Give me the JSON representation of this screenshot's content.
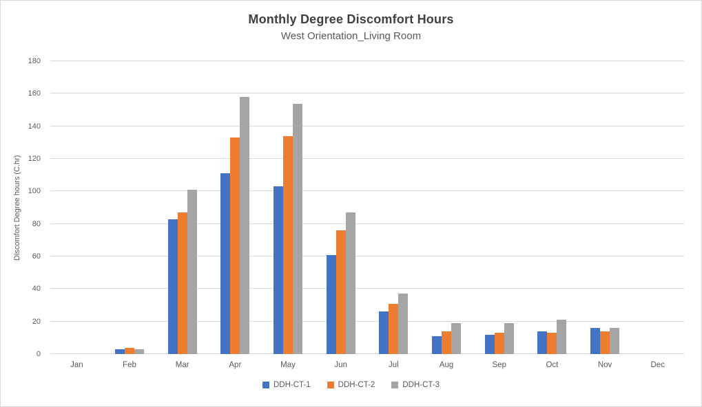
{
  "frame": {
    "background": "#FFFFFF",
    "border_color": "#D8D8D8"
  },
  "chart_data": {
    "type": "bar",
    "title": "Monthly Degree Discomfort Hours",
    "subtitle": "West Orientation_Living Room",
    "ylabel": "Discomfort Degree hours (C.hr)",
    "xlabel": "",
    "ylim": [
      0,
      180
    ],
    "y_ticks": [
      0,
      20,
      40,
      60,
      80,
      100,
      120,
      140,
      160,
      180
    ],
    "grid": true,
    "legend_position": "bottom",
    "categories": [
      "Jan",
      "Feb",
      "Mar",
      "Apr",
      "May",
      "Jun",
      "Jul",
      "Aug",
      "Sep",
      "Oct",
      "Nov",
      "Dec"
    ],
    "series": [
      {
        "name": "DDH-CT-1",
        "color": "#4472C4",
        "values": [
          0,
          3,
          83,
          111,
          103,
          61,
          26,
          11,
          12,
          14,
          16,
          0
        ]
      },
      {
        "name": "DDH-CT-2",
        "color": "#ED7D31",
        "values": [
          0,
          4,
          87,
          133,
          134,
          76,
          31,
          14,
          13,
          13,
          14,
          0
        ]
      },
      {
        "name": "DDH-CT-3",
        "color": "#A5A5A5",
        "values": [
          0,
          3,
          101,
          158,
          154,
          87,
          37,
          19,
          19,
          21,
          16,
          0
        ]
      }
    ],
    "colors": {
      "title_text": "#404040",
      "axis_text": "#595959",
      "gridline": "#D9D9D9"
    }
  }
}
